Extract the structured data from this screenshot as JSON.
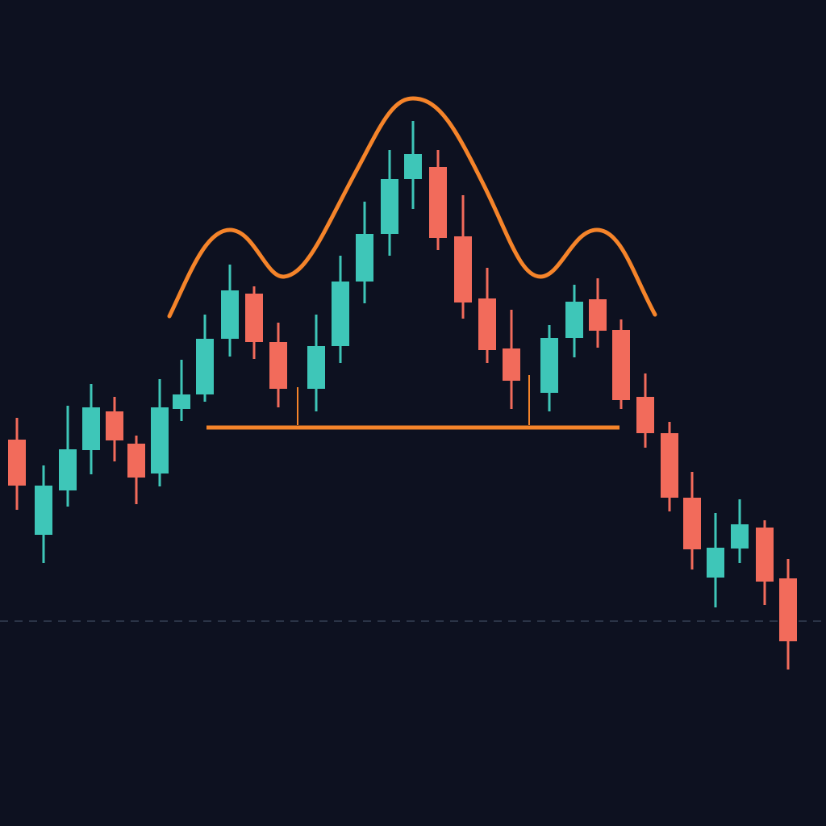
{
  "chart_data": {
    "type": "candlestick",
    "x": [
      2.1,
      5.4,
      8.4,
      11.3,
      14.2,
      16.9,
      19.8,
      22.5,
      25.4,
      28.5,
      31.5,
      34.5,
      39.2,
      42.2,
      45.2,
      48.3,
      51.2,
      54.3,
      57.4,
      60.4,
      63.4,
      68.1,
      71.2,
      74.1,
      77.0,
      80.0,
      83.0,
      85.8,
      88.7,
      91.7,
      94.8,
      97.7
    ],
    "open": [
      47.9,
      36.1,
      41.6,
      46.6,
      51.4,
      47.4,
      43.7,
      51.7,
      53.5,
      60.4,
      66.0,
      60.0,
      54.2,
      59.5,
      67.5,
      73.4,
      80.2,
      81.7,
      73.1,
      65.4,
      59.2,
      53.7,
      60.5,
      65.3,
      61.5,
      53.2,
      48.7,
      40.7,
      30.8,
      34.4,
      37.0,
      30.7
    ],
    "close": [
      42.2,
      42.2,
      46.7,
      51.9,
      47.8,
      43.2,
      51.9,
      53.5,
      60.4,
      66.4,
      60.0,
      54.2,
      59.5,
      67.5,
      73.4,
      80.2,
      83.3,
      72.9,
      64.9,
      59.0,
      55.2,
      60.5,
      65.0,
      61.4,
      52.8,
      48.7,
      40.7,
      34.3,
      34.5,
      37.4,
      30.3,
      22.9
    ],
    "high": [
      50.6,
      44.7,
      52.1,
      54.8,
      53.2,
      48.4,
      55.4,
      57.8,
      63.4,
      69.6,
      66.9,
      62.4,
      63.4,
      70.7,
      77.4,
      83.8,
      87.4,
      83.8,
      78.2,
      69.2,
      64.0,
      62.1,
      67.1,
      67.9,
      62.8,
      56.1,
      50.1,
      43.9,
      38.8,
      40.5,
      37.9,
      33.1
    ],
    "low": [
      39.2,
      32.6,
      39.6,
      43.6,
      45.2,
      39.9,
      42.1,
      50.2,
      52.6,
      58.2,
      57.9,
      51.9,
      51.4,
      57.4,
      64.8,
      70.7,
      76.5,
      71.4,
      62.9,
      57.4,
      51.7,
      51.4,
      58.1,
      59.3,
      51.7,
      46.9,
      39.0,
      31.8,
      27.1,
      32.6,
      27.4,
      19.4
    ],
    "up_color": "#3ec6b8",
    "down_color": "#f26b5b",
    "neckline": {
      "value": 49.4,
      "x": [
        25.6,
        76.8
      ],
      "color": "#f5842a"
    },
    "reference_line": {
      "value": 25.4,
      "color": "#2b3447"
    },
    "xlim": [
      0,
      102.4
    ],
    "ylim": [
      0,
      102.4
    ]
  }
}
